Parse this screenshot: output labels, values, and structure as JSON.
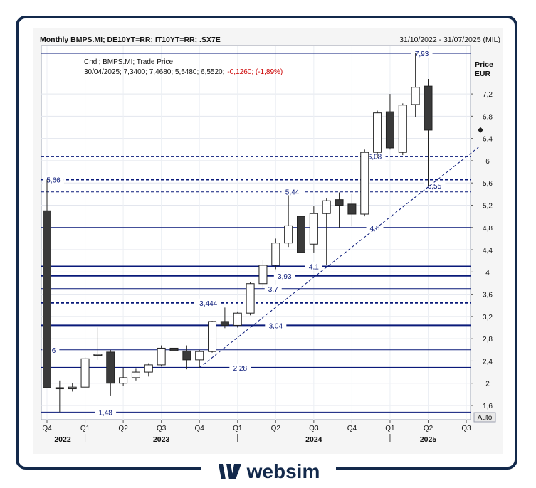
{
  "header": {
    "title": "Monthly BMPS.MI; DE10YT=RR; IT10YT=RR; .SX7E",
    "range": "31/10/2022 - 31/07/2025 (MIL)"
  },
  "legend": {
    "line1": "Cndl; BMPS.MI; Trade Price",
    "line2": "30/04/2025; 7,3400; 7,4680; 5,5480; 6,5520;",
    "change": "-0,1260; (-1,89%)"
  },
  "axis": {
    "label1": "Price",
    "label2": "EUR",
    "auto": "Auto"
  },
  "brand": {
    "logo_text": "websim"
  },
  "colors": {
    "frame": "#13294b",
    "level_line": "#0a1a7a",
    "up_candle": "#ffffff",
    "down_candle": "#3a3a3a",
    "change_text": "#cc0000"
  },
  "chart_data": {
    "type": "candlestick",
    "ylim": [
      1.4,
      7.95
    ],
    "yticks": [
      1.6,
      2,
      2.4,
      2.8,
      3.2,
      3.6,
      4,
      4.4,
      4.8,
      5.2,
      5.6,
      6,
      6.4,
      6.8,
      7.2
    ],
    "ytick_labels": [
      "1,6",
      "2",
      "2,4",
      "2,8",
      "3,2",
      "3,6",
      "4",
      "4,4",
      "4,8",
      "5,2",
      "5,6",
      "6",
      "6,4",
      "6,8",
      "7,2"
    ],
    "current_price": 6.552,
    "xticks": [
      {
        "i": 0,
        "label": "Q4",
        "year": "2022"
      },
      {
        "i": 3,
        "label": "Q1"
      },
      {
        "i": 6,
        "label": "Q2"
      },
      {
        "i": 9,
        "label": "Q3",
        "year": "2023"
      },
      {
        "i": 12,
        "label": "Q4"
      },
      {
        "i": 15,
        "label": "Q1"
      },
      {
        "i": 18,
        "label": "Q2"
      },
      {
        "i": 21,
        "label": "Q3",
        "year": "2024"
      },
      {
        "i": 24,
        "label": "Q4"
      },
      {
        "i": 27,
        "label": "Q1"
      },
      {
        "i": 30,
        "label": "Q2",
        "year": "2025"
      },
      {
        "i": 33,
        "label": "Q3"
      }
    ],
    "candles": [
      {
        "o": 5.1,
        "h": 5.66,
        "l": 1.92,
        "c": 1.92
      },
      {
        "o": 1.92,
        "h": 2.05,
        "l": 1.48,
        "c": 1.9
      },
      {
        "o": 1.9,
        "h": 2.0,
        "l": 1.85,
        "c": 1.93
      },
      {
        "o": 1.93,
        "h": 2.47,
        "l": 1.93,
        "c": 2.44
      },
      {
        "o": 2.51,
        "h": 3.0,
        "l": 2.42,
        "c": 2.52
      },
      {
        "o": 2.56,
        "h": 2.6,
        "l": 1.78,
        "c": 2.0
      },
      {
        "o": 2.0,
        "h": 2.28,
        "l": 1.95,
        "c": 2.1
      },
      {
        "o": 2.1,
        "h": 2.26,
        "l": 2.05,
        "c": 2.2
      },
      {
        "o": 2.2,
        "h": 2.36,
        "l": 2.12,
        "c": 2.33
      },
      {
        "o": 2.33,
        "h": 2.68,
        "l": 2.3,
        "c": 2.63
      },
      {
        "o": 2.63,
        "h": 2.82,
        "l": 2.55,
        "c": 2.58
      },
      {
        "o": 2.58,
        "h": 2.68,
        "l": 2.25,
        "c": 2.42
      },
      {
        "o": 2.42,
        "h": 2.6,
        "l": 2.28,
        "c": 2.57
      },
      {
        "o": 2.57,
        "h": 3.12,
        "l": 2.55,
        "c": 3.11
      },
      {
        "o": 3.11,
        "h": 3.36,
        "l": 2.99,
        "c": 3.04
      },
      {
        "o": 3.04,
        "h": 3.29,
        "l": 3.0,
        "c": 3.26
      },
      {
        "o": 3.26,
        "h": 3.82,
        "l": 3.22,
        "c": 3.79
      },
      {
        "o": 3.79,
        "h": 4.22,
        "l": 3.7,
        "c": 4.12
      },
      {
        "o": 4.12,
        "h": 4.6,
        "l": 4.05,
        "c": 4.52
      },
      {
        "o": 4.52,
        "h": 5.38,
        "l": 4.45,
        "c": 4.83
      },
      {
        "o": 5.0,
        "h": 5.0,
        "l": 4.35,
        "c": 4.35
      },
      {
        "o": 4.5,
        "h": 5.18,
        "l": 4.35,
        "c": 5.05
      },
      {
        "o": 5.05,
        "h": 5.32,
        "l": 4.12,
        "c": 5.28
      },
      {
        "o": 5.3,
        "h": 5.43,
        "l": 4.8,
        "c": 5.2
      },
      {
        "o": 5.22,
        "h": 5.4,
        "l": 4.82,
        "c": 5.04
      },
      {
        "o": 5.04,
        "h": 6.2,
        "l": 5.0,
        "c": 6.15
      },
      {
        "o": 6.15,
        "h": 6.9,
        "l": 6.05,
        "c": 6.86
      },
      {
        "o": 6.88,
        "h": 7.2,
        "l": 6.2,
        "c": 6.23
      },
      {
        "o": 6.15,
        "h": 7.03,
        "l": 6.1,
        "c": 7.0
      },
      {
        "o": 7.01,
        "h": 7.93,
        "l": 6.78,
        "c": 7.32
      },
      {
        "o": 7.34,
        "h": 7.47,
        "l": 5.55,
        "c": 6.55
      }
    ],
    "levels": [
      {
        "value": 7.93,
        "label": "7,93",
        "style": "solid",
        "label_i": 29.5
      },
      {
        "value": 6.08,
        "label": "6,08",
        "style": "dashed",
        "label_i": 25.8
      },
      {
        "value": 5.66,
        "label": "5,66",
        "style": "dashed-bold",
        "label_i": 0.5
      },
      {
        "value": 5.55,
        "label": "5,55",
        "style": "none",
        "label_i": 30.5
      },
      {
        "value": 5.44,
        "label": "5,44",
        "style": "dashed",
        "label_i": 19.3
      },
      {
        "value": 4.8,
        "label": "4,8",
        "style": "solid",
        "label_i": 25.8
      },
      {
        "value": 4.1,
        "label": "4,1",
        "style": "solid-bold",
        "label_i": 21.0
      },
      {
        "value": 3.93,
        "label": "3,93",
        "style": "solid-bold",
        "label_i": 18.7
      },
      {
        "value": 3.7,
        "label": "3,7",
        "style": "solid",
        "label_i": 17.8
      },
      {
        "value": 3.444,
        "label": "3,444",
        "style": "dashed-bold",
        "label_i": 12.7
      },
      {
        "value": 3.04,
        "label": "3,04",
        "style": "solid-bold",
        "label_i": 18.0
      },
      {
        "value": 2.6,
        "label": "2,6",
        "style": "solid",
        "label_i": 0.3
      },
      {
        "value": 2.28,
        "label": "2,28",
        "style": "solid-bold",
        "label_i": 15.2
      },
      {
        "value": 1.48,
        "label": "1,48",
        "style": "solid",
        "label_i": 4.6
      }
    ],
    "trendline": {
      "from": [
        12,
        2.28
      ],
      "to": [
        34,
        6.25
      ],
      "style": "dashed"
    }
  }
}
